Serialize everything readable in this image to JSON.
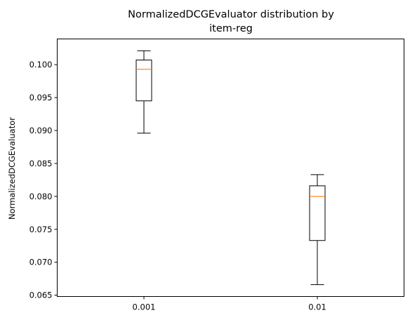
{
  "chart_data": {
    "type": "boxplot",
    "title_lines": [
      "NormalizedDCGEvaluator distribution by",
      "item-reg"
    ],
    "xlabel": "",
    "ylabel": "NormalizedDCGEvaluator",
    "categories": [
      "0.001",
      "0.01"
    ],
    "boxes": [
      {
        "category": "0.001",
        "whisker_low": 0.0896,
        "q1": 0.0945,
        "median": 0.0993,
        "q3": 0.1007,
        "whisker_high": 0.1021
      },
      {
        "category": "0.01",
        "whisker_low": 0.0666,
        "q1": 0.0733,
        "median": 0.08,
        "q3": 0.0816,
        "whisker_high": 0.0833
      }
    ],
    "ylim": [
      0.0648,
      0.1039
    ],
    "yticks": [
      0.065,
      0.07,
      0.075,
      0.08,
      0.085,
      0.09,
      0.095,
      0.1
    ],
    "ytick_labels": [
      "0.065",
      "0.070",
      "0.075",
      "0.080",
      "0.085",
      "0.090",
      "0.095",
      "0.100"
    ],
    "grid": false,
    "colors": {
      "box": "#000000",
      "median": "#ff7f0e"
    }
  }
}
